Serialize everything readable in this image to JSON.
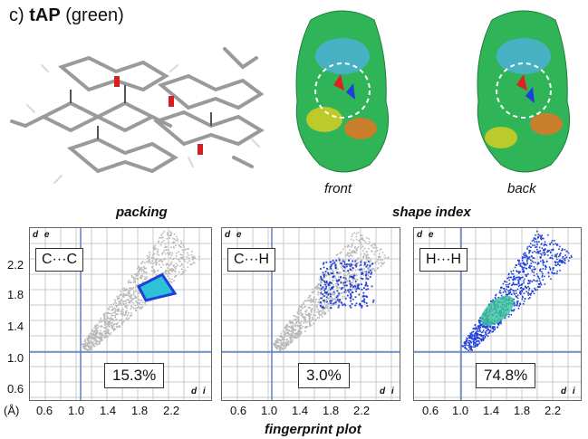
{
  "panel": {
    "label": "c)",
    "compound": "tAP",
    "color_note": "(green)"
  },
  "surface_labels": {
    "front": "front",
    "back": "back"
  },
  "section_labels": {
    "packing": "packing",
    "shape_index": "shape index",
    "fingerprint": "fingerprint plot"
  },
  "axis": {
    "de_label": "d e",
    "di_label": "d i",
    "unit": "(Å)",
    "y_ticks": [
      "2.2",
      "1.8",
      "1.4",
      "1.0",
      "0.6"
    ],
    "x_ticks": [
      "0.6",
      "1.0",
      "1.4",
      "1.8",
      "2.2"
    ]
  },
  "fingerprints": [
    {
      "contact": "C···C",
      "percent": "15.3%"
    },
    {
      "contact": "C···H",
      "percent": "3.0%"
    },
    {
      "contact": "H···H",
      "percent": "74.8%"
    }
  ],
  "colors": {
    "grid": "#c8c8c8",
    "axis_line": "#5b84c4",
    "gray_cloud": "#b8b8b8",
    "blue": "#1f3fd8"
  }
}
